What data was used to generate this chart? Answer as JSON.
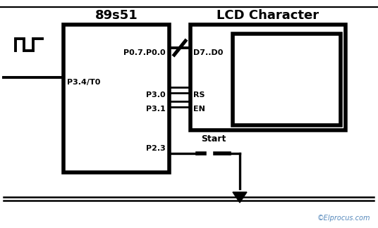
{
  "bg_color": "#ffffff",
  "line_color": "#000000",
  "title_89s51": "89s51",
  "title_lcd": "LCD Character",
  "label_p07p00": "P0.7.P0.0",
  "label_d7d0": "D7..D0",
  "label_p34to": "P3.4/T0",
  "label_p30": "P3.0",
  "label_p31": "P3.1",
  "label_rs": "RS",
  "label_en": "EN",
  "label_p23": "P2.3",
  "label_start": "Start",
  "label_copyright": "©Elprocus.com",
  "figsize": [
    5.36,
    3.24
  ],
  "dpi": 100
}
